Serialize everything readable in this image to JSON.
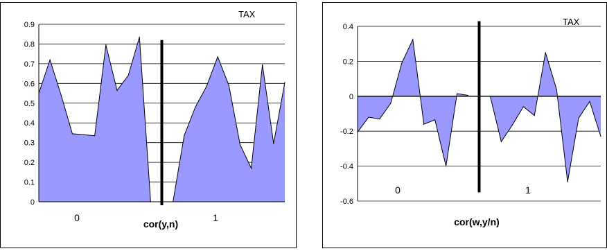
{
  "chart_data": [
    {
      "type": "area",
      "title": "TAX",
      "xlabel": "cor(y,n)",
      "ylabel": "",
      "ylim": [
        0,
        0.9
      ],
      "yticks": [
        "0",
        "0.1",
        "0.2",
        "0.3",
        "0.4",
        "0.5",
        "0.6",
        "0.7",
        "0.8",
        "0.9"
      ],
      "group_labels": [
        "0",
        "1"
      ],
      "grid": "horizontal",
      "fill_color": "#9999ff",
      "line_color": "#000000",
      "divider_value": 0.82,
      "series": [
        {
          "values": [
            0.55,
            0.72,
            0.54,
            0.345,
            0.34,
            0.335,
            0.795,
            0.565,
            0.64,
            0.835,
            0.0,
            null,
            0.0,
            0.335,
            0.48,
            0.585,
            0.735,
            0.59,
            0.29,
            0.17,
            0.695,
            0.295,
            0.605
          ]
        }
      ]
    },
    {
      "type": "area",
      "title": "TAX",
      "xlabel": "cor(w,y/n)",
      "ylabel": "",
      "ylim": [
        -0.6,
        0.4
      ],
      "yticks": [
        "-0.6",
        "-0.4",
        "-0.2",
        "0",
        "0.2",
        "0.4"
      ],
      "group_labels": [
        "0",
        "1"
      ],
      "grid": "horizontal",
      "fill_color": "#9999ff",
      "line_color": "#000000",
      "divider_range": [
        -0.55,
        0.43
      ],
      "series": [
        {
          "values": [
            -0.205,
            -0.12,
            -0.13,
            -0.04,
            0.19,
            0.325,
            -0.16,
            -0.135,
            -0.4,
            0.015,
            0.005,
            null,
            0.0,
            -0.26,
            -0.165,
            -0.06,
            -0.11,
            0.25,
            0.04,
            -0.49,
            -0.125,
            -0.03,
            -0.23
          ]
        }
      ]
    }
  ]
}
